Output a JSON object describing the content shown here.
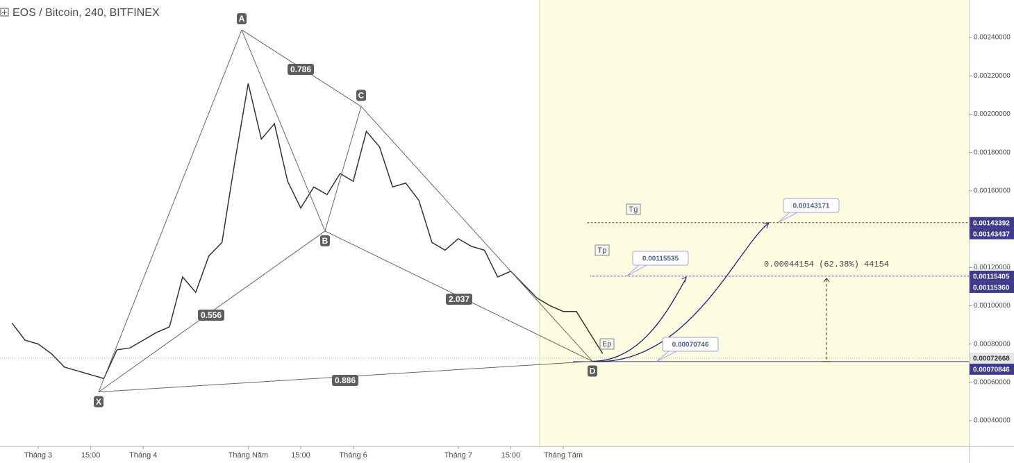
{
  "chart_data": {
    "type": "line",
    "title": "EOS / Bitcoin, 240, BITFINEX",
    "color": "#333333",
    "categories": [
      null,
      null,
      "Tháng 3",
      null,
      null,
      null,
      "15:00",
      null,
      null,
      null,
      "Tháng 4",
      null,
      null,
      null,
      null,
      null,
      null,
      null,
      "Tháng Năm",
      null,
      null,
      null,
      "15:00",
      null,
      null,
      null,
      "Tháng 6",
      null,
      null,
      null,
      null,
      null,
      null,
      null,
      "Tháng 7",
      null,
      null,
      null,
      "15:00",
      null,
      null,
      null,
      "Tháng Tám",
      null,
      null,
      null,
      null,
      null,
      null,
      null,
      null,
      null,
      null,
      null,
      null,
      null,
      null,
      null,
      null,
      null,
      null,
      null,
      null,
      null,
      null,
      null,
      null,
      null,
      null,
      null,
      null,
      null,
      null
    ],
    "values": [
      0.00091,
      0.00082,
      0.0008,
      0.00075,
      0.00068,
      0.00066,
      0.00064,
      0.00062,
      0.00077,
      0.00078,
      0.00082,
      0.00086,
      0.00089,
      0.00115,
      0.00107,
      0.00126,
      0.00133,
      0.00176,
      0.00216,
      0.00187,
      0.00195,
      0.00165,
      0.00151,
      0.00162,
      0.00158,
      0.00169,
      0.00165,
      0.00191,
      0.00183,
      0.00162,
      0.00164,
      0.00155,
      0.00133,
      0.00129,
      0.00135,
      0.00131,
      0.00129,
      0.00115,
      0.00118,
      0.00111,
      0.00104,
      0.001,
      0.00097,
      0.00097,
      0.00086,
      0.00075,
      null,
      null,
      null,
      null,
      null,
      null,
      null,
      null,
      null,
      null,
      null,
      null,
      null,
      null,
      null,
      null,
      null,
      null,
      null,
      null,
      null,
      null,
      null,
      null,
      null,
      null,
      null
    ],
    "ylim": [
      0.000266,
      0.002596
    ],
    "yticks": [
      {
        "value": 0.0004,
        "label": "0.00040000"
      },
      {
        "value": 0.0006,
        "label": "0.00060000"
      },
      {
        "value": 0.0008,
        "label": "0.00080000"
      },
      {
        "value": 0.001,
        "label": "0.00100000"
      },
      {
        "value": 0.0012,
        "label": "0.00120000"
      },
      {
        "value": 0.0014,
        "label": "0.00140000"
      },
      {
        "value": 0.0016,
        "label": "0.00160000"
      },
      {
        "value": 0.0018,
        "label": "0.00180000"
      },
      {
        "value": 0.002,
        "label": "0.00200000"
      },
      {
        "value": 0.0022,
        "label": "0.00220000"
      },
      {
        "value": 0.0024,
        "label": "0.00240000"
      }
    ],
    "pattern": {
      "labels": [
        "X",
        "A",
        "B",
        "C",
        "D"
      ],
      "values": [
        0.00055,
        0.00244,
        0.00139,
        0.00204,
        0.00071
      ]
    },
    "ratios": [
      0.786,
      0.556,
      2.037,
      0.886
    ],
    "targets": [
      "Tg",
      "Tp",
      "Ep"
    ],
    "callouts": [
      0.00143171,
      0.00115535,
      0.00070746
    ],
    "measure": "0.00044154 (62.38%) 44154",
    "price_tags": [
      0.00143392,
      0.00143437,
      0.00115405,
      {
        "value": 0.0011536,
        "label": "0.00115360"
      },
      0.00072668,
      0.00070846
    ]
  }
}
